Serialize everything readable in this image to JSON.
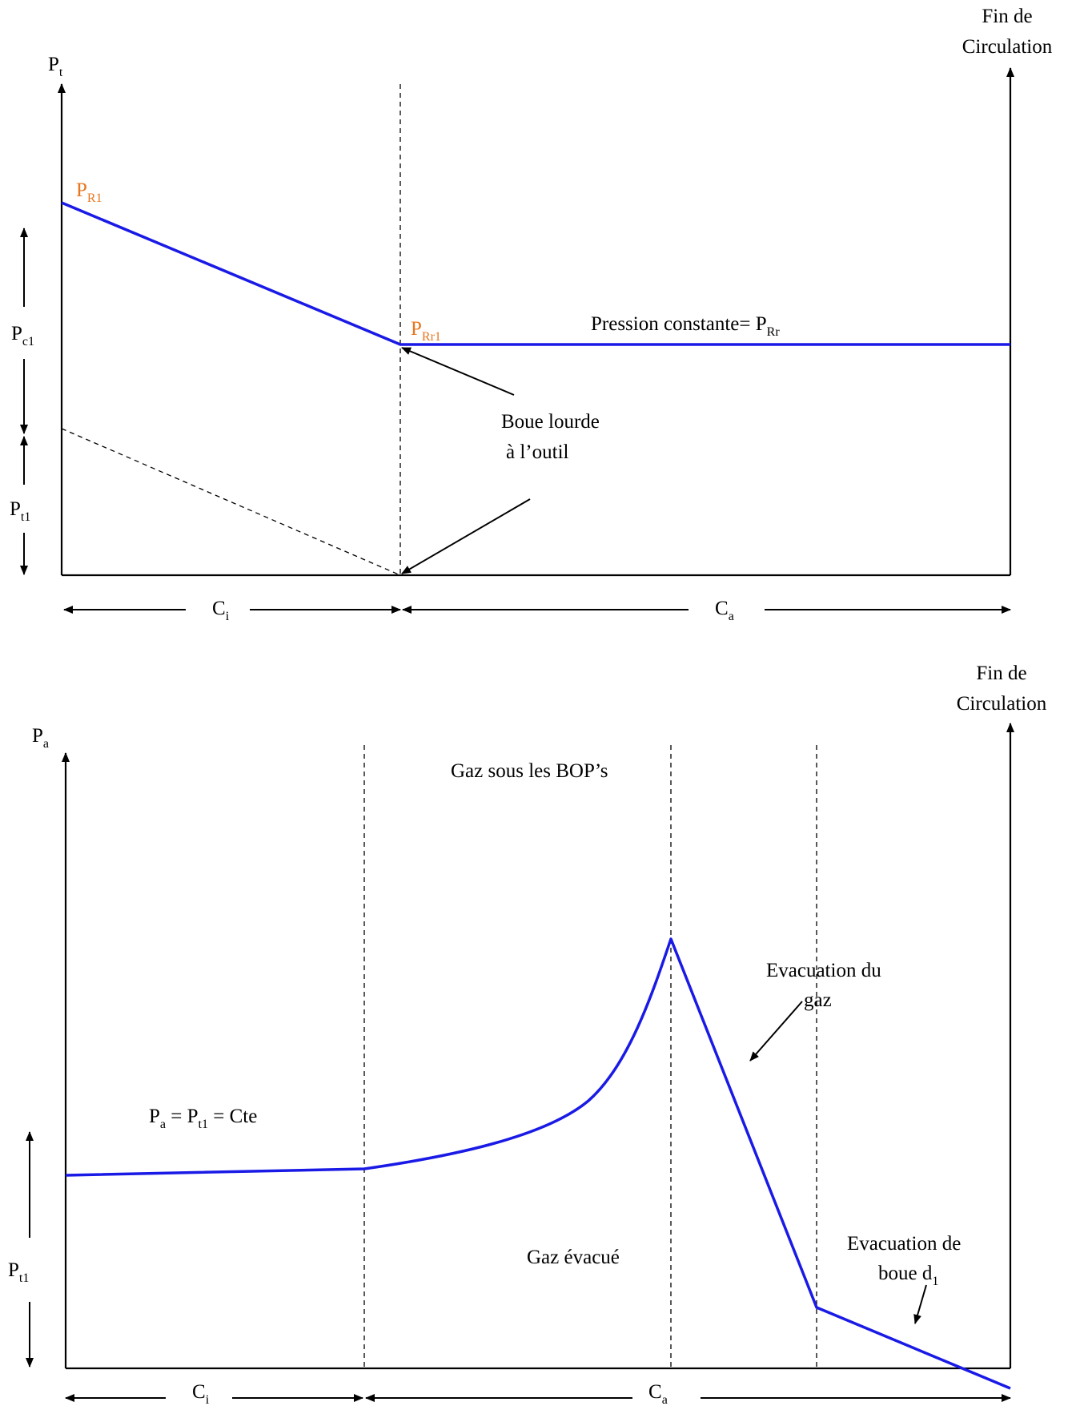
{
  "top": {
    "yaxis": {
      "main": "P",
      "sub": "t"
    },
    "fin": [
      "Fin de",
      "Circulation"
    ],
    "pr1": {
      "main": "P",
      "sub": "R1"
    },
    "prr1": {
      "main": "P",
      "sub": "Rr1"
    },
    "pression": {
      "text": "Pression constante= P",
      "sub": "Rr"
    },
    "boue": [
      "Boue lourde",
      "à l’outil"
    ],
    "pc1": {
      "main": "P",
      "sub": "c1"
    },
    "pt1": {
      "main": "P",
      "sub": "t1"
    },
    "ci": {
      "main": "C",
      "sub": "i"
    },
    "ca": {
      "main": "C",
      "sub": "a"
    }
  },
  "bottom": {
    "yaxis": {
      "main": "P",
      "sub": "a"
    },
    "fin": [
      "Fin de",
      "Circulation"
    ],
    "gazsous": "Gaz sous les BOP’s",
    "evac_gaz": [
      "Evacuation du",
      "gaz"
    ],
    "pa_eq": {
      "p1": "P",
      "s1": "a",
      "eq1": " = P",
      "s2": "t1",
      "eq2": " = Cte"
    },
    "gaz_evacue": "Gaz évacué",
    "evac_boue": {
      "line1": "Evacuation de",
      "line2": "boue d",
      "sub": "1"
    },
    "pt1": {
      "main": "P",
      "sub": "t1"
    },
    "ci": {
      "main": "C",
      "sub": "i"
    },
    "ca": {
      "main": "C",
      "sub": "a"
    }
  },
  "colors": {
    "curve": "#1a1ae6",
    "accent_label": "#e8761e"
  }
}
